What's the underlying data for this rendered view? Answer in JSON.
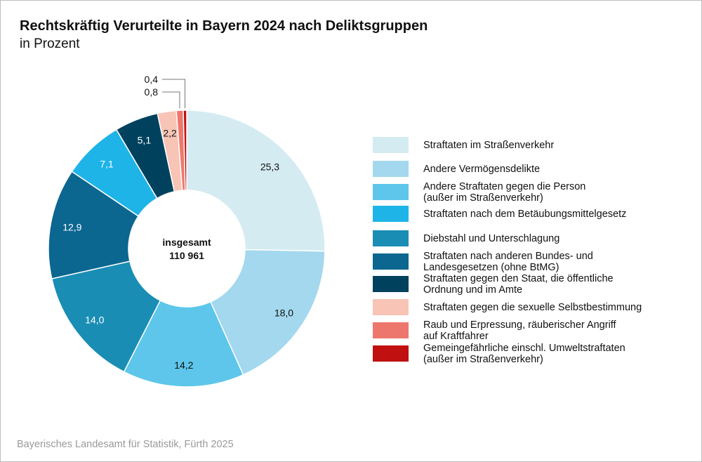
{
  "title": "Rechtskräftig Verurteilte in Bayern 2024 nach Deliktsgruppen",
  "subtitle": "in Prozent",
  "source": "Bayerisches Landesamt für Statistik, Fürth 2025",
  "chart_data": {
    "type": "pie",
    "variant": "donut",
    "title": "Rechtskräftig Verurteilte in Bayern 2024 nach Deliktsgruppen",
    "unit": "Prozent",
    "center_label": "insgesamt",
    "center_value": "110 961",
    "legend_position": "right",
    "slices": [
      {
        "name": "Straftaten im Straßenverkehr",
        "value": 25.3,
        "label": "25,3",
        "color": "#d4ebf2"
      },
      {
        "name": "Andere Vermögensdelikte",
        "value": 18.0,
        "label": "18,0",
        "color": "#a3d8ee"
      },
      {
        "name": "Andere Straftaten gegen die Person\n(außer im Straßenverkehr)",
        "value": 14.2,
        "label": "14,2",
        "color": "#5ec6ea"
      },
      {
        "name": "Straftaten nach dem Betäubungsmittelgesetz",
        "value": 7.1,
        "label": "7,1",
        "color": "#1fb4e8"
      },
      {
        "name": "Diebstahl und Unterschlagung",
        "value": 14.0,
        "label": "14,0",
        "color": "#1a8db5"
      },
      {
        "name": "Straftaten nach anderen Bundes- und\nLandesgesetzen (ohne BtMG)",
        "value": 12.9,
        "label": "12,9",
        "color": "#0b6690"
      },
      {
        "name": "Straftaten gegen den Staat, die öffentliche\nOrdnung und im Amte",
        "value": 5.1,
        "label": "5,1",
        "color": "#00425e"
      },
      {
        "name": "Straftaten gegen die sexuelle Selbstbestimmung",
        "value": 2.2,
        "label": "2,2",
        "color": "#f8c4b6"
      },
      {
        "name": "Raub und Erpressung, räuberischer Angriff\nauf Kraftfahrer",
        "value": 0.8,
        "label": "0,8",
        "color": "#ee776d"
      },
      {
        "name": "Gemeingefährliche einschl. Umweltstraftaten\n(außer im Straßenverkehr)",
        "value": 0.4,
        "label": "0,4",
        "color": "#c01010"
      }
    ],
    "slice_order": [
      0,
      1,
      2,
      4,
      5,
      3,
      6,
      7,
      8,
      9
    ]
  }
}
